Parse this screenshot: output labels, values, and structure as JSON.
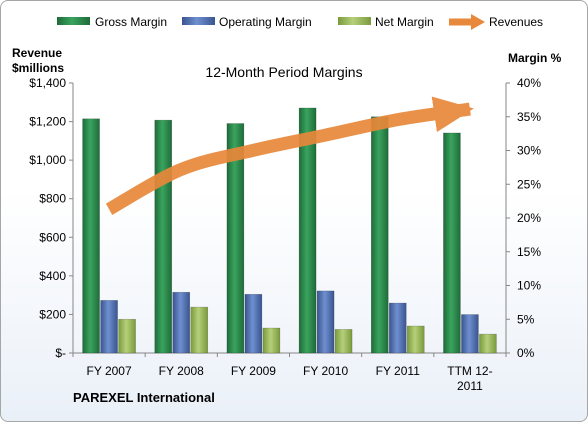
{
  "chart_data": {
    "type": "bar",
    "title": "12-Month Period Margins",
    "left_axis_label_line1": "Revenue",
    "left_axis_label_line2": "$millions",
    "right_axis_label": "Margin %",
    "company": "PAREXEL International",
    "categories": [
      "FY 2007",
      "FY 2008",
      "FY 2009",
      "FY 2010",
      "FY 2011",
      "TTM 12-2011"
    ],
    "category_label_lines": [
      [
        "FY 2007"
      ],
      [
        "FY 2008"
      ],
      [
        "FY 2009"
      ],
      [
        "FY 2010"
      ],
      [
        "FY 2011"
      ],
      [
        "TTM 12-",
        "2011"
      ]
    ],
    "left_axis": {
      "min": 0,
      "max": 1400,
      "step": 200,
      "tick_labels": [
        "$-",
        "$200",
        "$400",
        "$600",
        "$800",
        "$1,000",
        "$1,200",
        "$1,400"
      ]
    },
    "right_axis": {
      "min": 0,
      "max": 40,
      "step": 5,
      "tick_labels": [
        "0%",
        "5%",
        "10%",
        "15%",
        "20%",
        "25%",
        "30%",
        "35%",
        "40%"
      ]
    },
    "grid": false,
    "legend_position": "top",
    "series": [
      {
        "name": "Gross Margin",
        "type": "bar",
        "axis": "right",
        "color": "#2e8b4e",
        "values": [
          34.7,
          34.5,
          34.0,
          36.3,
          35.0,
          32.6
        ]
      },
      {
        "name": "Operating Margin",
        "type": "bar",
        "axis": "right",
        "color": "#4f6fb0",
        "values": [
          7.8,
          9.0,
          8.7,
          9.2,
          7.4,
          5.7
        ]
      },
      {
        "name": "Net Margin",
        "type": "bar",
        "axis": "right",
        "color": "#9bbb59",
        "values": [
          5.0,
          6.8,
          3.7,
          3.5,
          4.0,
          2.8
        ]
      },
      {
        "name": "Revenues",
        "type": "line",
        "axis": "left",
        "color": "#e8883a",
        "values": [
          745,
          952,
          1051,
          1130,
          1210,
          1265
        ]
      }
    ]
  }
}
